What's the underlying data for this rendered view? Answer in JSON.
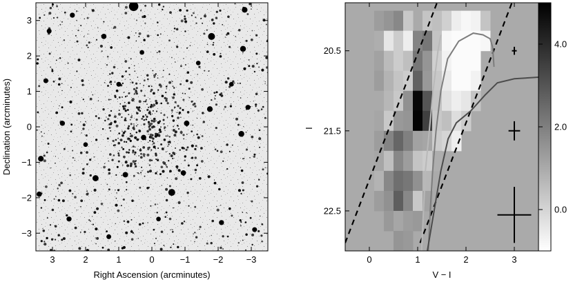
{
  "chart_data": [
    {
      "type": "scatter",
      "panel": "sky-image",
      "xlabel": "Right Ascension (arcminutes)",
      "ylabel": "Declination (arcminutes)",
      "xlim": [
        3.5,
        -3.5
      ],
      "ylim": [
        -3.5,
        3.5
      ],
      "x_inverted": true,
      "xticks": [
        3,
        2,
        1,
        0,
        -1,
        -2,
        -3
      ],
      "xtick_labels": [
        "3",
        "2",
        "1",
        "0",
        "−1",
        "−2",
        "−3"
      ],
      "yticks": [
        3,
        2,
        1,
        0,
        -1,
        -2,
        -3
      ],
      "ytick_labels": [
        "3",
        "2",
        "1",
        "0",
        "−1",
        "−2",
        "−3"
      ],
      "grid": false,
      "image_style": "inverted greyscale star field; dark points are stars, densest near the centre",
      "bright_sources": [
        {
          "x": 0.55,
          "y": 3.4,
          "r": 0.32
        },
        {
          "x": -1.8,
          "y": 2.55,
          "r": 0.2
        },
        {
          "x": -2.8,
          "y": 3.3,
          "r": 0.14
        },
        {
          "x": -2.75,
          "y": 2.2,
          "r": 0.15
        },
        {
          "x": -1.75,
          "y": 0.5,
          "r": 0.14
        },
        {
          "x": -1.05,
          "y": 0.1,
          "r": 0.13
        },
        {
          "x": -2.7,
          "y": -0.2,
          "r": 0.15
        },
        {
          "x": 0.25,
          "y": -0.3,
          "r": 0.12
        },
        {
          "x": 1.7,
          "y": -1.45,
          "r": 0.16
        },
        {
          "x": 0.8,
          "y": -1.35,
          "r": 0.13
        },
        {
          "x": -0.6,
          "y": -1.85,
          "r": 0.2
        },
        {
          "x": -0.95,
          "y": -1.3,
          "r": 0.12
        },
        {
          "x": 3.35,
          "y": -0.9,
          "r": 0.14
        },
        {
          "x": 3.4,
          "y": -1.9,
          "r": 0.12
        },
        {
          "x": 2.7,
          "y": 0.1,
          "r": 0.11
        },
        {
          "x": 1.45,
          "y": 2.55,
          "r": 0.12
        },
        {
          "x": 2.4,
          "y": 3.15,
          "r": 0.11
        },
        {
          "x": 3.1,
          "y": 2.7,
          "r": 0.1
        },
        {
          "x": -2.9,
          "y": 0.55,
          "r": 0.11
        },
        {
          "x": -3.1,
          "y": -2.9,
          "r": 0.1
        },
        {
          "x": -2.1,
          "y": -2.7,
          "r": 0.11
        },
        {
          "x": 2.5,
          "y": -2.6,
          "r": 0.11
        },
        {
          "x": 1.0,
          "y": 1.2,
          "r": 0.1
        },
        {
          "x": 3.2,
          "y": 1.3,
          "r": 0.1
        },
        {
          "x": -1.4,
          "y": 1.8,
          "r": 0.09
        },
        {
          "x": 0.3,
          "y": 2.1,
          "r": 0.09
        },
        {
          "x": 2.0,
          "y": -0.5,
          "r": 0.09
        },
        {
          "x": -0.2,
          "y": -2.6,
          "r": 0.09
        },
        {
          "x": 1.3,
          "y": -3.1,
          "r": 0.1
        },
        {
          "x": -2.4,
          "y": 1.2,
          "r": 0.09
        }
      ]
    },
    {
      "type": "heatmap",
      "panel": "hess-diagram",
      "xlabel": "V − I",
      "ylabel": "I",
      "xlim": [
        -0.5,
        3.5
      ],
      "ylim": [
        23.0,
        19.9
      ],
      "y_inverted": true,
      "xticks": [
        0,
        1,
        2,
        3
      ],
      "xtick_labels": [
        "0",
        "1",
        "2",
        "3"
      ],
      "yticks": [
        20.5,
        21.5,
        22.5
      ],
      "ytick_labels": [
        "20.5",
        "21.5",
        "22.5"
      ],
      "grid": false,
      "colorbar": {
        "ticks": [
          4.0,
          2.0,
          0.0
        ],
        "tick_labels": [
          "4.0",
          "2.0",
          "0.0"
        ],
        "vmin": -1.0,
        "vmax": 5.0,
        "scale": "greyscale, white = low, black = high"
      },
      "background_value": 1.0,
      "cell_size": {
        "color": 0.2,
        "mag": 0.25
      },
      "cells": [
        [
          0.2,
          20.125,
          1.3
        ],
        [
          0.4,
          20.125,
          1.5
        ],
        [
          0.6,
          20.125,
          1.8
        ],
        [
          0.8,
          20.125,
          0.3
        ],
        [
          1.2,
          20.125,
          0.4
        ],
        [
          1.4,
          20.125,
          0.5
        ],
        [
          1.6,
          20.125,
          0.1
        ],
        [
          1.8,
          20.125,
          -0.6
        ],
        [
          2.0,
          20.125,
          -0.8
        ],
        [
          2.2,
          20.125,
          -0.7
        ],
        [
          2.4,
          20.125,
          0.4
        ],
        [
          0.2,
          20.375,
          0.9
        ],
        [
          0.4,
          20.375,
          -0.4
        ],
        [
          0.6,
          20.375,
          0.2
        ],
        [
          0.8,
          20.375,
          -0.6
        ],
        [
          1.0,
          20.375,
          1.9
        ],
        [
          1.2,
          20.375,
          2.2
        ],
        [
          1.4,
          20.375,
          0.4
        ],
        [
          1.6,
          20.375,
          -0.8
        ],
        [
          1.8,
          20.375,
          -0.9
        ],
        [
          2.0,
          20.375,
          -0.9
        ],
        [
          2.2,
          20.375,
          -0.9
        ],
        [
          2.4,
          20.375,
          -0.8
        ],
        [
          0.2,
          20.625,
          1.2
        ],
        [
          0.4,
          20.625,
          0.6
        ],
        [
          0.6,
          20.625,
          0.2
        ],
        [
          0.8,
          20.625,
          0.5
        ],
        [
          1.0,
          20.625,
          2.2
        ],
        [
          1.2,
          20.625,
          1.5
        ],
        [
          1.4,
          20.625,
          0.1
        ],
        [
          1.6,
          20.625,
          -0.7
        ],
        [
          1.8,
          20.625,
          -0.9
        ],
        [
          2.0,
          20.625,
          -0.9
        ],
        [
          2.2,
          20.625,
          -0.9
        ],
        [
          0.2,
          20.875,
          1.3
        ],
        [
          0.4,
          20.875,
          0.8
        ],
        [
          0.6,
          20.875,
          0.4
        ],
        [
          0.8,
          20.875,
          0.2
        ],
        [
          1.0,
          20.875,
          2.7
        ],
        [
          1.2,
          20.875,
          1.4
        ],
        [
          1.4,
          20.875,
          0.3
        ],
        [
          1.6,
          20.875,
          -0.5
        ],
        [
          1.8,
          20.875,
          -0.9
        ],
        [
          2.0,
          20.875,
          -0.9
        ],
        [
          2.2,
          20.875,
          -0.7
        ],
        [
          0.2,
          21.125,
          1.0
        ],
        [
          0.4,
          21.125,
          0.7
        ],
        [
          0.6,
          21.125,
          0.3
        ],
        [
          0.8,
          21.125,
          1.6
        ],
        [
          1.0,
          21.125,
          4.8
        ],
        [
          1.2,
          21.125,
          3.0
        ],
        [
          1.4,
          21.125,
          0.4
        ],
        [
          1.6,
          21.125,
          -0.3
        ],
        [
          1.8,
          21.125,
          -0.6
        ],
        [
          2.0,
          21.125,
          -0.4
        ],
        [
          2.2,
          21.125,
          0.4
        ],
        [
          0.2,
          21.375,
          1.1
        ],
        [
          0.4,
          21.375,
          0.3
        ],
        [
          0.6,
          21.375,
          1.4
        ],
        [
          0.8,
          21.375,
          1.5
        ],
        [
          1.0,
          21.375,
          4.9
        ],
        [
          1.2,
          21.375,
          3.5
        ],
        [
          1.4,
          21.375,
          0.3
        ],
        [
          1.6,
          21.375,
          0.5
        ],
        [
          1.8,
          21.375,
          -0.2
        ],
        [
          2.0,
          21.375,
          0.2
        ],
        [
          0.2,
          21.625,
          1.3
        ],
        [
          0.4,
          21.625,
          1.9
        ],
        [
          0.6,
          21.625,
          2.6
        ],
        [
          0.8,
          21.625,
          2.0
        ],
        [
          1.0,
          21.625,
          1.2
        ],
        [
          1.2,
          21.625,
          1.1
        ],
        [
          1.4,
          21.625,
          0.2
        ],
        [
          1.6,
          21.625,
          0.0
        ],
        [
          1.8,
          21.625,
          -0.6
        ],
        [
          0.2,
          21.875,
          1.1
        ],
        [
          0.4,
          21.875,
          0.5
        ],
        [
          0.6,
          21.875,
          1.8
        ],
        [
          0.8,
          21.875,
          1.3
        ],
        [
          1.0,
          21.875,
          0.4
        ],
        [
          1.2,
          21.875,
          0.2
        ],
        [
          1.4,
          21.875,
          0.9
        ],
        [
          0.2,
          22.125,
          0.8
        ],
        [
          0.4,
          22.125,
          1.8
        ],
        [
          0.6,
          22.125,
          2.4
        ],
        [
          0.8,
          22.125,
          2.2
        ],
        [
          1.0,
          22.125,
          1.6
        ],
        [
          1.2,
          22.125,
          0.7
        ],
        [
          0.2,
          22.375,
          1.3
        ],
        [
          0.4,
          22.375,
          1.6
        ],
        [
          0.6,
          22.375,
          2.8
        ],
        [
          0.8,
          22.375,
          1.8
        ],
        [
          1.0,
          22.375,
          0.3
        ],
        [
          1.2,
          22.375,
          1.2
        ],
        [
          0.4,
          22.625,
          1.4
        ],
        [
          0.6,
          22.625,
          1.1
        ],
        [
          0.8,
          22.625,
          1.3
        ],
        [
          1.0,
          22.625,
          1.4
        ],
        [
          0.6,
          22.875,
          1.5
        ],
        [
          0.8,
          22.875,
          1.4
        ]
      ],
      "dashed_lines": [
        {
          "points": [
            [
              -0.5,
              22.9
            ],
            [
              1.4,
              19.9
            ]
          ]
        },
        {
          "points": [
            [
              1.05,
              22.9
            ],
            [
              2.95,
              19.9
            ]
          ]
        }
      ],
      "isochrones": [
        {
          "shade": "light grey",
          "points": [
            [
              1.08,
              23.0
            ],
            [
              1.12,
              22.5
            ],
            [
              1.16,
              22.0
            ],
            [
              1.24,
              21.5
            ],
            [
              1.32,
              21.0
            ],
            [
              1.42,
              20.5
            ],
            [
              1.48,
              20.3
            ]
          ]
        },
        {
          "shade": "mid grey",
          "points": [
            [
              1.22,
              23.0
            ],
            [
              1.26,
              22.5
            ],
            [
              1.31,
              22.0
            ],
            [
              1.38,
              21.5
            ],
            [
              1.48,
              21.0
            ],
            [
              1.62,
              20.6
            ],
            [
              1.85,
              20.38
            ],
            [
              2.15,
              20.28
            ],
            [
              2.35,
              20.3
            ],
            [
              2.5,
              20.35
            ],
            [
              2.55,
              20.45
            ],
            [
              2.58,
              20.7
            ]
          ]
        },
        {
          "shade": "dark grey",
          "points": [
            [
              1.2,
              23.0
            ],
            [
              1.34,
              22.5
            ],
            [
              1.48,
              22.0
            ],
            [
              1.63,
              21.6
            ],
            [
              1.8,
              21.4
            ],
            [
              2.1,
              21.25
            ],
            [
              2.4,
              21.05
            ],
            [
              2.65,
              20.9
            ],
            [
              3.0,
              20.85
            ],
            [
              3.5,
              20.83
            ]
          ]
        }
      ],
      "error_bars": [
        {
          "x": 3.0,
          "y": 20.5,
          "xerr": 0.05,
          "yerr": 0.05
        },
        {
          "x": 3.0,
          "y": 21.5,
          "xerr": 0.12,
          "yerr": 0.12
        },
        {
          "x": 3.0,
          "y": 22.55,
          "xerr": 0.35,
          "yerr": 0.35
        }
      ]
    }
  ]
}
